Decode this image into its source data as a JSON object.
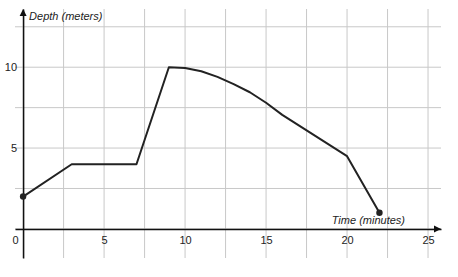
{
  "chart_data": {
    "type": "line",
    "x_label": "Time (minutes)",
    "y_label": "Depth (meters)",
    "x": [
      0,
      3,
      7,
      9,
      10,
      11,
      12,
      13,
      14,
      15,
      16,
      20,
      22
    ],
    "values": [
      2,
      4,
      4,
      10,
      9.95,
      9.75,
      9.4,
      8.95,
      8.45,
      7.8,
      7.05,
      4.5,
      1
    ],
    "color": "#222222",
    "marker": "endpoints",
    "xlim": [
      -0.5,
      25.8
    ],
    "ylim": [
      -1.8,
      13.6
    ],
    "xticks": [
      0,
      5,
      10,
      15,
      20,
      25
    ],
    "yticks": [
      5,
      10
    ],
    "grid": true
  }
}
